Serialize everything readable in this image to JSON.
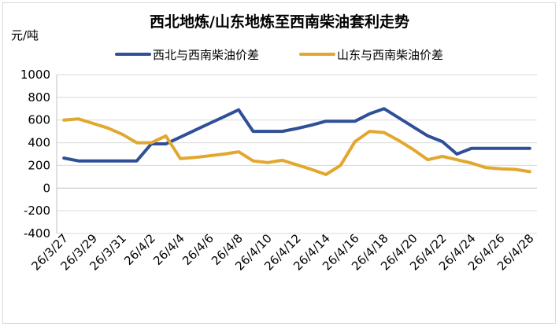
{
  "chart_data": {
    "type": "line",
    "title": "西北地炼/山东地炼至西南柴油套利走势",
    "unit_label": "元/吨",
    "ylim": [
      -400,
      1000
    ],
    "y_ticks": [
      1000,
      800,
      600,
      400,
      200,
      0,
      -200,
      -400
    ],
    "grid": true,
    "legend_position": "top",
    "x": [
      "26/3/27",
      "26/3/28",
      "26/3/29",
      "26/3/30",
      "26/3/31",
      "26/4/1",
      "26/4/2",
      "26/4/3",
      "26/4/4",
      "26/4/5",
      "26/4/6",
      "26/4/7",
      "26/4/8",
      "26/4/9",
      "26/4/10",
      "26/4/11",
      "26/4/12",
      "26/4/13",
      "26/4/14",
      "26/4/15",
      "26/4/16",
      "26/4/17",
      "26/4/18",
      "26/4/19",
      "26/4/20",
      "26/4/21",
      "26/4/22",
      "26/4/23",
      "26/4/24",
      "26/4/25",
      "26/4/26",
      "26/4/27",
      "26/4/28"
    ],
    "x_tick_labels": [
      "26/3/27",
      "26/3/29",
      "26/3/31",
      "26/4/2",
      "26/4/4",
      "26/4/6",
      "26/4/8",
      "26/4/10",
      "26/4/12",
      "26/4/14",
      "26/4/16",
      "26/4/18",
      "26/4/20",
      "26/4/22",
      "26/4/24",
      "26/4/26",
      "26/4/28"
    ],
    "series": [
      {
        "name": "西北与西南柴油价差",
        "color": "#2f4f97",
        "values": [
          265,
          240,
          240,
          240,
          240,
          240,
          390,
          390,
          450,
          510,
          570,
          630,
          690,
          500,
          500,
          500,
          525,
          555,
          590,
          590,
          590,
          655,
          700,
          620,
          540,
          460,
          410,
          300,
          350,
          350,
          350,
          350,
          350
        ]
      },
      {
        "name": "山东与西南柴油价差",
        "color": "#e2a72e",
        "values": [
          600,
          610,
          570,
          530,
          475,
          400,
          400,
          460,
          260,
          270,
          285,
          300,
          320,
          240,
          225,
          245,
          205,
          165,
          120,
          200,
          410,
          500,
          490,
          420,
          340,
          250,
          280,
          250,
          220,
          180,
          170,
          165,
          145
        ]
      }
    ]
  }
}
